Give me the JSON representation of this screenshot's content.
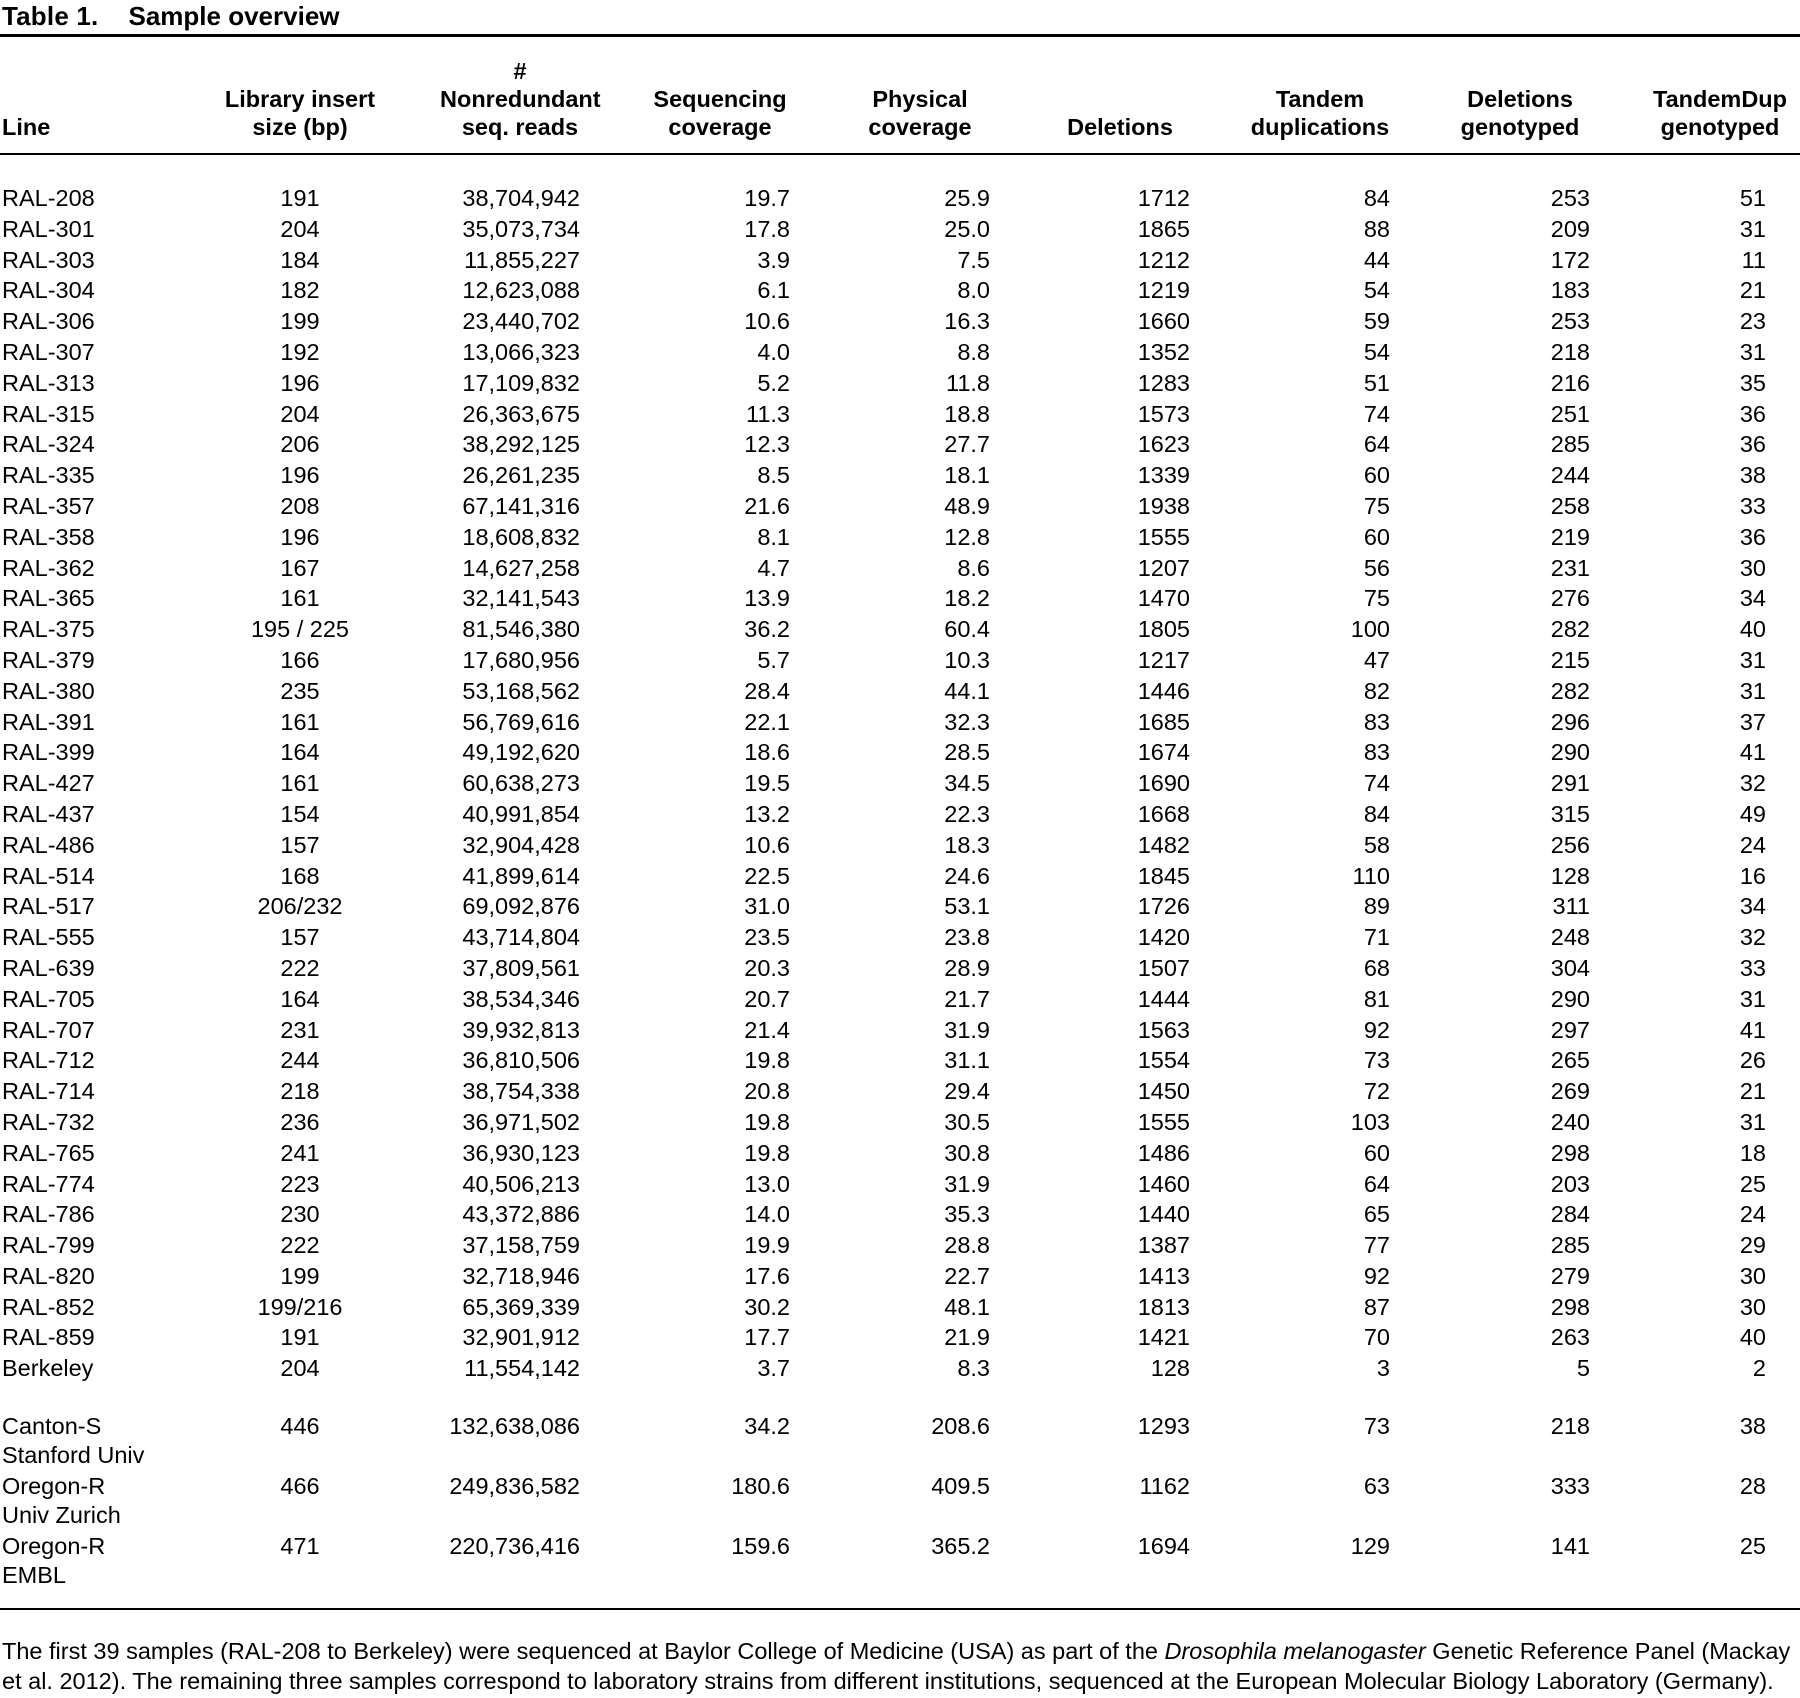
{
  "title": {
    "label": "Table 1.",
    "text": "Sample overview"
  },
  "table": {
    "columns": [
      {
        "lines": [
          "Line"
        ]
      },
      {
        "lines": [
          "Library insert",
          "size (bp)"
        ]
      },
      {
        "lines": [
          "# Nonredundant",
          "seq. reads"
        ]
      },
      {
        "lines": [
          "Sequencing",
          "coverage"
        ]
      },
      {
        "lines": [
          "Physical",
          "coverage"
        ]
      },
      {
        "lines": [
          "Deletions"
        ]
      },
      {
        "lines": [
          "Tandem",
          "duplications"
        ]
      },
      {
        "lines": [
          "Deletions",
          "genotyped"
        ]
      },
      {
        "lines": [
          "TandemDup",
          "genotyped"
        ]
      }
    ],
    "rows": [
      {
        "line": "RAL-208",
        "values": [
          "191",
          "38,704,942",
          "19.7",
          "25.9",
          "1712",
          "84",
          "253",
          "51"
        ]
      },
      {
        "line": "RAL-301",
        "values": [
          "204",
          "35,073,734",
          "17.8",
          "25.0",
          "1865",
          "88",
          "209",
          "31"
        ]
      },
      {
        "line": "RAL-303",
        "values": [
          "184",
          "11,855,227",
          "3.9",
          "7.5",
          "1212",
          "44",
          "172",
          "11"
        ]
      },
      {
        "line": "RAL-304",
        "values": [
          "182",
          "12,623,088",
          "6.1",
          "8.0",
          "1219",
          "54",
          "183",
          "21"
        ]
      },
      {
        "line": "RAL-306",
        "values": [
          "199",
          "23,440,702",
          "10.6",
          "16.3",
          "1660",
          "59",
          "253",
          "23"
        ]
      },
      {
        "line": "RAL-307",
        "values": [
          "192",
          "13,066,323",
          "4.0",
          "8.8",
          "1352",
          "54",
          "218",
          "31"
        ]
      },
      {
        "line": "RAL-313",
        "values": [
          "196",
          "17,109,832",
          "5.2",
          "11.8",
          "1283",
          "51",
          "216",
          "35"
        ]
      },
      {
        "line": "RAL-315",
        "values": [
          "204",
          "26,363,675",
          "11.3",
          "18.8",
          "1573",
          "74",
          "251",
          "36"
        ]
      },
      {
        "line": "RAL-324",
        "values": [
          "206",
          "38,292,125",
          "12.3",
          "27.7",
          "1623",
          "64",
          "285",
          "36"
        ]
      },
      {
        "line": "RAL-335",
        "values": [
          "196",
          "26,261,235",
          "8.5",
          "18.1",
          "1339",
          "60",
          "244",
          "38"
        ]
      },
      {
        "line": "RAL-357",
        "values": [
          "208",
          "67,141,316",
          "21.6",
          "48.9",
          "1938",
          "75",
          "258",
          "33"
        ]
      },
      {
        "line": "RAL-358",
        "values": [
          "196",
          "18,608,832",
          "8.1",
          "12.8",
          "1555",
          "60",
          "219",
          "36"
        ]
      },
      {
        "line": "RAL-362",
        "values": [
          "167",
          "14,627,258",
          "4.7",
          "8.6",
          "1207",
          "56",
          "231",
          "30"
        ]
      },
      {
        "line": "RAL-365",
        "values": [
          "161",
          "32,141,543",
          "13.9",
          "18.2",
          "1470",
          "75",
          "276",
          "34"
        ]
      },
      {
        "line": "RAL-375",
        "values": [
          "195 / 225",
          "81,546,380",
          "36.2",
          "60.4",
          "1805",
          "100",
          "282",
          "40"
        ]
      },
      {
        "line": "RAL-379",
        "values": [
          "166",
          "17,680,956",
          "5.7",
          "10.3",
          "1217",
          "47",
          "215",
          "31"
        ]
      },
      {
        "line": "RAL-380",
        "values": [
          "235",
          "53,168,562",
          "28.4",
          "44.1",
          "1446",
          "82",
          "282",
          "31"
        ]
      },
      {
        "line": "RAL-391",
        "values": [
          "161",
          "56,769,616",
          "22.1",
          "32.3",
          "1685",
          "83",
          "296",
          "37"
        ]
      },
      {
        "line": "RAL-399",
        "values": [
          "164",
          "49,192,620",
          "18.6",
          "28.5",
          "1674",
          "83",
          "290",
          "41"
        ]
      },
      {
        "line": "RAL-427",
        "values": [
          "161",
          "60,638,273",
          "19.5",
          "34.5",
          "1690",
          "74",
          "291",
          "32"
        ]
      },
      {
        "line": "RAL-437",
        "values": [
          "154",
          "40,991,854",
          "13.2",
          "22.3",
          "1668",
          "84",
          "315",
          "49"
        ]
      },
      {
        "line": "RAL-486",
        "values": [
          "157",
          "32,904,428",
          "10.6",
          "18.3",
          "1482",
          "58",
          "256",
          "24"
        ]
      },
      {
        "line": "RAL-514",
        "values": [
          "168",
          "41,899,614",
          "22.5",
          "24.6",
          "1845",
          "110",
          "128",
          "16"
        ]
      },
      {
        "line": "RAL-517",
        "values": [
          "206/232",
          "69,092,876",
          "31.0",
          "53.1",
          "1726",
          "89",
          "311",
          "34"
        ]
      },
      {
        "line": "RAL-555",
        "values": [
          "157",
          "43,714,804",
          "23.5",
          "23.8",
          "1420",
          "71",
          "248",
          "32"
        ]
      },
      {
        "line": "RAL-639",
        "values": [
          "222",
          "37,809,561",
          "20.3",
          "28.9",
          "1507",
          "68",
          "304",
          "33"
        ]
      },
      {
        "line": "RAL-705",
        "values": [
          "164",
          "38,534,346",
          "20.7",
          "21.7",
          "1444",
          "81",
          "290",
          "31"
        ]
      },
      {
        "line": "RAL-707",
        "values": [
          "231",
          "39,932,813",
          "21.4",
          "31.9",
          "1563",
          "92",
          "297",
          "41"
        ]
      },
      {
        "line": "RAL-712",
        "values": [
          "244",
          "36,810,506",
          "19.8",
          "31.1",
          "1554",
          "73",
          "265",
          "26"
        ]
      },
      {
        "line": "RAL-714",
        "values": [
          "218",
          "38,754,338",
          "20.8",
          "29.4",
          "1450",
          "72",
          "269",
          "21"
        ]
      },
      {
        "line": "RAL-732",
        "values": [
          "236",
          "36,971,502",
          "19.8",
          "30.5",
          "1555",
          "103",
          "240",
          "31"
        ]
      },
      {
        "line": "RAL-765",
        "values": [
          "241",
          "36,930,123",
          "19.8",
          "30.8",
          "1486",
          "60",
          "298",
          "18"
        ]
      },
      {
        "line": "RAL-774",
        "values": [
          "223",
          "40,506,213",
          "13.0",
          "31.9",
          "1460",
          "64",
          "203",
          "25"
        ]
      },
      {
        "line": "RAL-786",
        "values": [
          "230",
          "43,372,886",
          "14.0",
          "35.3",
          "1440",
          "65",
          "284",
          "24"
        ]
      },
      {
        "line": "RAL-799",
        "values": [
          "222",
          "37,158,759",
          "19.9",
          "28.8",
          "1387",
          "77",
          "285",
          "29"
        ]
      },
      {
        "line": "RAL-820",
        "values": [
          "199",
          "32,718,946",
          "17.6",
          "22.7",
          "1413",
          "92",
          "279",
          "30"
        ]
      },
      {
        "line": "RAL-852",
        "values": [
          "199/216",
          "65,369,339",
          "30.2",
          "48.1",
          "1813",
          "87",
          "298",
          "30"
        ]
      },
      {
        "line": "RAL-859",
        "values": [
          "191",
          "32,901,912",
          "17.7",
          "21.9",
          "1421",
          "70",
          "263",
          "40"
        ]
      },
      {
        "line": "Berkeley",
        "values": [
          "204",
          "11,554,142",
          "3.7",
          "8.3",
          "128",
          "3",
          "5",
          "2"
        ]
      },
      {
        "line": "Canton-S",
        "sub": "Stanford Univ",
        "gap_before": true,
        "values": [
          "446",
          "132,638,086",
          "34.2",
          "208.6",
          "1293",
          "73",
          "218",
          "38"
        ]
      },
      {
        "line": "Oregon-R",
        "sub": "Univ Zurich",
        "values": [
          "466",
          "249,836,582",
          "180.6",
          "409.5",
          "1162",
          "63",
          "333",
          "28"
        ]
      },
      {
        "line": "Oregon-R",
        "sub": "EMBL",
        "values": [
          "471",
          "220,736,416",
          "159.6",
          "365.2",
          "1694",
          "129",
          "141",
          "25"
        ]
      }
    ]
  },
  "footnote": {
    "pre_italic": "The first 39 samples (RAL-208 to Berkeley) were sequenced at Baylor College of Medicine (USA) as part of the ",
    "italic": "Drosophila melanogaster",
    "post_italic": " Genetic Reference Panel (Mackay et al. 2012). The remaining three samples correspond to laboratory strains from different institutions, sequenced at the European Molecular Biology Laboratory (Germany)."
  }
}
